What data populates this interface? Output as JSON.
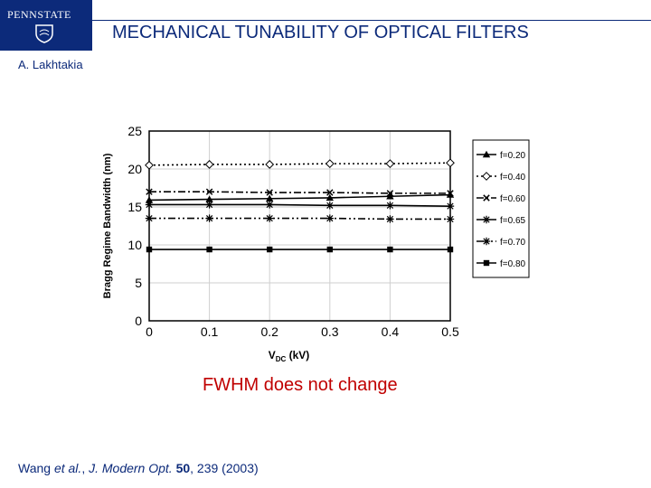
{
  "header": {
    "logo_text": "PENNSTATE",
    "title": "MECHANICAL TUNABILITY OF OPTICAL FILTERS",
    "author": "A. Lakhtakia"
  },
  "colors": {
    "brand": "#0c2a7a",
    "caption": "#c00000"
  },
  "chart_data": {
    "type": "line",
    "ylabel": "Bragg Regime Bandwidth (nm)",
    "xlabel_main": "V",
    "xlabel_sub": "DC",
    "xlabel_unit": " (kV)",
    "x": [
      0,
      0.1,
      0.2,
      0.3,
      0.4,
      0.5
    ],
    "x_tick_labels": [
      "0",
      "0.1",
      "0.2",
      "0.3",
      "0.4",
      "0.5"
    ],
    "y_ticks": [
      0,
      5,
      10,
      15,
      20,
      25
    ],
    "xlim": [
      0,
      0.5
    ],
    "ylim": [
      0,
      25
    ],
    "grid": true,
    "legend_position": "right",
    "series": [
      {
        "name": "f=0.20",
        "values": [
          15.9,
          16.0,
          16.1,
          16.2,
          16.4,
          16.6
        ],
        "dash": "",
        "marker": "triangle"
      },
      {
        "name": "f=0.40",
        "values": [
          20.5,
          20.6,
          20.6,
          20.7,
          20.7,
          20.8
        ],
        "dash": "2,3",
        "marker": "diamond"
      },
      {
        "name": "f=0.60",
        "values": [
          17.0,
          17.0,
          16.9,
          16.9,
          16.8,
          16.8
        ],
        "dash": "8,3,2,3",
        "marker": "x"
      },
      {
        "name": "f=0.65",
        "values": [
          15.3,
          15.3,
          15.3,
          15.2,
          15.2,
          15.1
        ],
        "dash": "",
        "marker": "star"
      },
      {
        "name": "f=0.70",
        "values": [
          13.5,
          13.5,
          13.5,
          13.5,
          13.4,
          13.4
        ],
        "dash": "8,3,2,3,2,3",
        "marker": "star"
      },
      {
        "name": "f=0.80",
        "values": [
          9.4,
          9.4,
          9.4,
          9.4,
          9.4,
          9.4
        ],
        "dash": "",
        "marker": "square"
      }
    ]
  },
  "caption": "FWHM does not change",
  "citation": {
    "authors": "Wang ",
    "etal": "et al.",
    "sep": ", ",
    "journal": "J. Modern Opt.",
    "space": " ",
    "volume": "50",
    "rest": ", 239 (2003)"
  }
}
